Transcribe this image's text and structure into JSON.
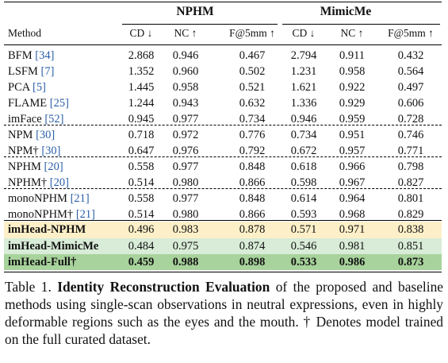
{
  "table": {
    "groups": [
      "NPHM",
      "MimicMe"
    ],
    "method_header": "Method",
    "metric_headers": [
      "CD ↓",
      "NC ↑",
      "F@5mm ↑",
      "CD ↓",
      "NC ↑",
      "F@5mm ↑"
    ],
    "rows": [
      {
        "name": "BFM",
        "ref": "[34]",
        "values": [
          "2.868",
          "0.946",
          "0.467",
          "2.794",
          "0.911",
          "0.432"
        ]
      },
      {
        "name": "LSFM",
        "ref": "[7]",
        "values": [
          "1.352",
          "0.960",
          "0.502",
          "1.231",
          "0.958",
          "0.564"
        ]
      },
      {
        "name": "PCA",
        "ref": "[5]",
        "values": [
          "1.445",
          "0.958",
          "0.521",
          "1.621",
          "0.922",
          "0.497"
        ]
      },
      {
        "name": "FLAME",
        "ref": "[25]",
        "values": [
          "1.244",
          "0.943",
          "0.632",
          "1.336",
          "0.929",
          "0.606"
        ]
      },
      {
        "name": "imFace",
        "ref": "[52]",
        "values": [
          "0.945",
          "0.977",
          "0.734",
          "0.946",
          "0.959",
          "0.728"
        ]
      },
      {
        "name": "NPM",
        "ref": "[30]",
        "values": [
          "0.718",
          "0.972",
          "0.776",
          "0.734",
          "0.951",
          "0.746"
        ]
      },
      {
        "name": "NPM†",
        "ref": "[30]",
        "values": [
          "0.647",
          "0.976",
          "0.792",
          "0.672",
          "0.957",
          "0.771"
        ]
      },
      {
        "name": "NPHM",
        "ref": "[20]",
        "values": [
          "0.558",
          "0.977",
          "0.848",
          "0.618",
          "0.966",
          "0.798"
        ]
      },
      {
        "name": "NPHM†",
        "ref": "[20]",
        "values": [
          "0.514",
          "0.980",
          "0.866",
          "0.598",
          "0.967",
          "0.827"
        ]
      },
      {
        "name": "monoNPHM",
        "ref": "[21]",
        "values": [
          "0.558",
          "0.977",
          "0.848",
          "0.614",
          "0.964",
          "0.801"
        ]
      },
      {
        "name": "monoNPHM†",
        "ref": "[21]",
        "values": [
          "0.514",
          "0.980",
          "0.866",
          "0.593",
          "0.968",
          "0.829"
        ]
      },
      {
        "name": "imHead-NPHM",
        "ref": "",
        "values": [
          "0.496",
          "0.983",
          "0.878",
          "0.571",
          "0.971",
          "0.838"
        ]
      },
      {
        "name": "imHead-MimicMe",
        "ref": "",
        "values": [
          "0.484",
          "0.975",
          "0.874",
          "0.546",
          "0.981",
          "0.851"
        ]
      },
      {
        "name": "imHead-Full†",
        "ref": "",
        "values": [
          "0.459",
          "0.988",
          "0.898",
          "0.533",
          "0.986",
          "0.873"
        ]
      }
    ],
    "highlight_colors": [
      "#fdf0c8",
      "#d8ecd7",
      "#a8d39c"
    ]
  },
  "caption": {
    "label": "Table 1.",
    "title": "Identity Reconstruction Evaluation",
    "text": "of the proposed and baseline methods using single-scan observations in neutral expressions, even in highly deformable regions such as the eyes and the mouth. † Denotes model trained on the full curated dataset."
  }
}
